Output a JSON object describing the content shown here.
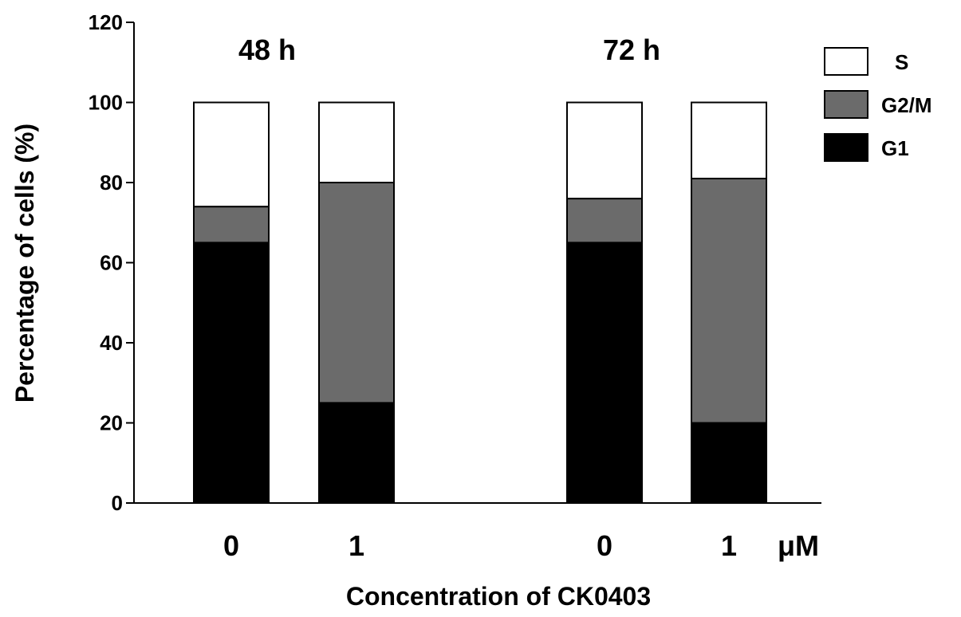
{
  "chart_data": {
    "type": "bar",
    "stacked": true,
    "title": "",
    "xlabel": "Concentration of CK0403",
    "ylabel": "Percentage of cells (%)",
    "ylim": [
      0,
      120
    ],
    "yticks": [
      0,
      20,
      40,
      60,
      80,
      100,
      120
    ],
    "unit_label": "μM",
    "groups": [
      {
        "label": "48 h",
        "categories": [
          "0",
          "1"
        ]
      },
      {
        "label": "72 h",
        "categories": [
          "0",
          "1"
        ]
      }
    ],
    "categories": [
      "0",
      "1",
      "0",
      "1"
    ],
    "series": [
      {
        "name": "G1",
        "color": "#000000",
        "values": [
          65,
          25,
          65,
          20
        ]
      },
      {
        "name": "G2/M",
        "color": "#6b6b6b",
        "values": [
          9,
          55,
          11,
          61
        ]
      },
      {
        "name": "S",
        "color": "#ffffff",
        "values": [
          26,
          20,
          24,
          19
        ]
      }
    ],
    "legend": {
      "position": "top-right",
      "order": [
        "S",
        "G2/M",
        "G1"
      ]
    },
    "grid": false
  }
}
